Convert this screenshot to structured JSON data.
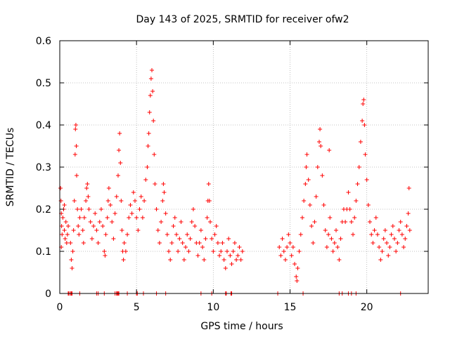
{
  "chart_data": {
    "type": "scatter",
    "title": "Day 143 of 2025, SRMTID for receiver ofw2",
    "xlabel": "GPS time / hours",
    "ylabel": "SRMTID / TECUs",
    "xlim": [
      0,
      24
    ],
    "ylim": [
      0,
      0.6
    ],
    "xticks": [
      0,
      5,
      10,
      15,
      20
    ],
    "yticks": [
      0,
      0.1,
      0.2,
      0.3,
      0.4,
      0.5,
      0.6
    ],
    "xtick_labels": [
      "0",
      "5",
      "10",
      "15",
      "20"
    ],
    "ytick_labels": [
      "0",
      "0.1",
      "0.2",
      "0.3",
      "0.4",
      "0.5",
      "0.6"
    ],
    "grid": true,
    "marker": "+",
    "series": [
      {
        "name": "SRMTID",
        "color": "#ff0000",
        "points": [
          [
            0.05,
            0.25
          ],
          [
            0.08,
            0.22
          ],
          [
            0.1,
            0.19
          ],
          [
            0.12,
            0.16
          ],
          [
            0.15,
            0.14
          ],
          [
            0.2,
            0.18
          ],
          [
            0.25,
            0.2
          ],
          [
            0.3,
            0.15
          ],
          [
            0.35,
            0.13
          ],
          [
            0.4,
            0.17
          ],
          [
            0.45,
            0.12
          ],
          [
            0.5,
            0.14
          ],
          [
            0.1,
            0.11
          ],
          [
            0.3,
            0.21
          ],
          [
            0.55,
            0.16
          ],
          [
            0.7,
            0.12
          ],
          [
            0.75,
            0.08
          ],
          [
            0.8,
            0.06
          ],
          [
            0.85,
            0.1
          ],
          [
            0.9,
            0.15
          ],
          [
            0.95,
            0.22
          ],
          [
            1.0,
            0.33
          ],
          [
            1.02,
            0.39
          ],
          [
            1.05,
            0.4
          ],
          [
            1.08,
            0.35
          ],
          [
            1.1,
            0.28
          ],
          [
            1.15,
            0.2
          ],
          [
            1.2,
            0.16
          ],
          [
            1.25,
            0.14
          ],
          [
            1.3,
            0.18
          ],
          [
            1.4,
            0.2
          ],
          [
            1.5,
            0.15
          ],
          [
            1.55,
            0.12
          ],
          [
            1.6,
            0.18
          ],
          [
            1.7,
            0.22
          ],
          [
            1.75,
            0.25
          ],
          [
            1.8,
            0.26
          ],
          [
            1.85,
            0.23
          ],
          [
            1.9,
            0.2
          ],
          [
            2.0,
            0.17
          ],
          [
            2.1,
            0.13
          ],
          [
            2.2,
            0.16
          ],
          [
            2.3,
            0.19
          ],
          [
            2.4,
            0.15
          ],
          [
            2.5,
            0.12
          ],
          [
            2.6,
            0.17
          ],
          [
            2.7,
            0.2
          ],
          [
            2.8,
            0.16
          ],
          [
            2.9,
            0.1
          ],
          [
            2.95,
            0.09
          ],
          [
            3.0,
            0.14
          ],
          [
            3.1,
            0.18
          ],
          [
            3.15,
            0.22
          ],
          [
            3.2,
            0.25
          ],
          [
            3.3,
            0.21
          ],
          [
            3.4,
            0.17
          ],
          [
            3.5,
            0.13
          ],
          [
            3.6,
            0.19
          ],
          [
            3.7,
            0.23
          ],
          [
            3.8,
            0.28
          ],
          [
            3.85,
            0.34
          ],
          [
            3.9,
            0.38
          ],
          [
            3.95,
            0.31
          ],
          [
            4.0,
            0.22
          ],
          [
            4.05,
            0.15
          ],
          [
            4.1,
            0.1
          ],
          [
            4.15,
            0.08
          ],
          [
            4.2,
            0.12
          ],
          [
            4.3,
            0.1
          ],
          [
            4.4,
            0.14
          ],
          [
            4.5,
            0.18
          ],
          [
            4.6,
            0.21
          ],
          [
            4.7,
            0.19
          ],
          [
            4.8,
            0.24
          ],
          [
            4.9,
            0.22
          ],
          [
            5.0,
            0.18
          ],
          [
            5.1,
            0.15
          ],
          [
            5.2,
            0.2
          ],
          [
            5.3,
            0.23
          ],
          [
            5.4,
            0.18
          ],
          [
            5.5,
            0.22
          ],
          [
            5.6,
            0.27
          ],
          [
            5.7,
            0.3
          ],
          [
            5.75,
            0.35
          ],
          [
            5.8,
            0.38
          ],
          [
            5.85,
            0.43
          ],
          [
            5.9,
            0.47
          ],
          [
            5.95,
            0.51
          ],
          [
            6.0,
            0.53
          ],
          [
            6.05,
            0.48
          ],
          [
            6.1,
            0.41
          ],
          [
            6.15,
            0.33
          ],
          [
            6.2,
            0.26
          ],
          [
            6.3,
            0.2
          ],
          [
            6.4,
            0.15
          ],
          [
            6.5,
            0.12
          ],
          [
            6.6,
            0.17
          ],
          [
            6.7,
            0.22
          ],
          [
            6.75,
            0.26
          ],
          [
            6.8,
            0.24
          ],
          [
            6.9,
            0.19
          ],
          [
            7.0,
            0.14
          ],
          [
            7.1,
            0.1
          ],
          [
            7.2,
            0.08
          ],
          [
            7.3,
            0.12
          ],
          [
            7.4,
            0.16
          ],
          [
            7.5,
            0.18
          ],
          [
            7.6,
            0.14
          ],
          [
            7.7,
            0.1
          ],
          [
            7.8,
            0.13
          ],
          [
            7.9,
            0.17
          ],
          [
            8.0,
            0.12
          ],
          [
            8.1,
            0.08
          ],
          [
            8.2,
            0.11
          ],
          [
            8.3,
            0.14
          ],
          [
            8.4,
            0.1
          ],
          [
            8.5,
            0.13
          ],
          [
            8.6,
            0.17
          ],
          [
            8.7,
            0.2
          ],
          [
            8.8,
            0.16
          ],
          [
            8.9,
            0.12
          ],
          [
            9.0,
            0.09
          ],
          [
            9.1,
            0.12
          ],
          [
            9.2,
            0.15
          ],
          [
            9.3,
            0.11
          ],
          [
            9.4,
            0.08
          ],
          [
            9.5,
            0.13
          ],
          [
            9.6,
            0.18
          ],
          [
            9.65,
            0.22
          ],
          [
            9.7,
            0.26
          ],
          [
            9.75,
            0.22
          ],
          [
            9.8,
            0.17
          ],
          [
            9.9,
            0.13
          ],
          [
            10.0,
            0.1
          ],
          [
            10.1,
            0.14
          ],
          [
            10.2,
            0.16
          ],
          [
            10.3,
            0.12
          ],
          [
            10.4,
            0.09
          ],
          [
            10.5,
            0.1
          ],
          [
            10.6,
            0.12
          ],
          [
            10.7,
            0.08
          ],
          [
            10.8,
            0.06
          ],
          [
            10.9,
            0.1
          ],
          [
            11.0,
            0.13
          ],
          [
            11.1,
            0.09
          ],
          [
            11.2,
            0.07
          ],
          [
            11.3,
            0.1
          ],
          [
            11.4,
            0.12
          ],
          [
            11.5,
            0.08
          ],
          [
            11.6,
            0.09
          ],
          [
            11.7,
            0.11
          ],
          [
            11.8,
            0.08
          ],
          [
            11.9,
            0.1
          ],
          [
            14.3,
            0.11
          ],
          [
            14.4,
            0.09
          ],
          [
            14.5,
            0.13
          ],
          [
            14.6,
            0.1
          ],
          [
            14.7,
            0.08
          ],
          [
            14.8,
            0.11
          ],
          [
            14.9,
            0.14
          ],
          [
            15.0,
            0.12
          ],
          [
            15.1,
            0.09
          ],
          [
            15.2,
            0.11
          ],
          [
            15.3,
            0.07
          ],
          [
            15.4,
            0.04
          ],
          [
            15.45,
            0.03
          ],
          [
            15.5,
            0.06
          ],
          [
            15.6,
            0.1
          ],
          [
            15.7,
            0.14
          ],
          [
            15.8,
            0.18
          ],
          [
            15.9,
            0.22
          ],
          [
            16.0,
            0.26
          ],
          [
            16.05,
            0.3
          ],
          [
            16.1,
            0.33
          ],
          [
            16.2,
            0.27
          ],
          [
            16.3,
            0.21
          ],
          [
            16.4,
            0.16
          ],
          [
            16.5,
            0.12
          ],
          [
            16.6,
            0.17
          ],
          [
            16.7,
            0.23
          ],
          [
            16.8,
            0.3
          ],
          [
            16.9,
            0.36
          ],
          [
            16.95,
            0.39
          ],
          [
            17.0,
            0.35
          ],
          [
            17.1,
            0.28
          ],
          [
            17.2,
            0.21
          ],
          [
            17.3,
            0.15
          ],
          [
            17.4,
            0.11
          ],
          [
            17.5,
            0.14
          ],
          [
            17.55,
            0.34
          ],
          [
            17.6,
            0.18
          ],
          [
            17.7,
            0.13
          ],
          [
            17.8,
            0.1
          ],
          [
            17.9,
            0.12
          ],
          [
            18.0,
            0.15
          ],
          [
            18.1,
            0.11
          ],
          [
            18.2,
            0.08
          ],
          [
            18.3,
            0.13
          ],
          [
            18.4,
            0.17
          ],
          [
            18.5,
            0.2
          ],
          [
            18.6,
            0.17
          ],
          [
            18.7,
            0.2
          ],
          [
            18.8,
            0.24
          ],
          [
            18.9,
            0.2
          ],
          [
            19.0,
            0.17
          ],
          [
            19.1,
            0.14
          ],
          [
            19.2,
            0.18
          ],
          [
            19.3,
            0.22
          ],
          [
            19.4,
            0.26
          ],
          [
            19.5,
            0.3
          ],
          [
            19.6,
            0.36
          ],
          [
            19.7,
            0.41
          ],
          [
            19.75,
            0.45
          ],
          [
            19.8,
            0.46
          ],
          [
            19.85,
            0.4
          ],
          [
            19.9,
            0.33
          ],
          [
            20.0,
            0.27
          ],
          [
            20.1,
            0.21
          ],
          [
            20.2,
            0.17
          ],
          [
            20.3,
            0.14
          ],
          [
            20.4,
            0.12
          ],
          [
            20.5,
            0.15
          ],
          [
            20.6,
            0.18
          ],
          [
            20.7,
            0.14
          ],
          [
            20.8,
            0.11
          ],
          [
            20.9,
            0.08
          ],
          [
            21.0,
            0.1
          ],
          [
            21.1,
            0.13
          ],
          [
            21.2,
            0.15
          ],
          [
            21.3,
            0.12
          ],
          [
            21.4,
            0.09
          ],
          [
            21.5,
            0.11
          ],
          [
            21.6,
            0.14
          ],
          [
            21.7,
            0.16
          ],
          [
            21.8,
            0.13
          ],
          [
            21.9,
            0.1
          ],
          [
            22.0,
            0.12
          ],
          [
            22.1,
            0.15
          ],
          [
            22.2,
            0.17
          ],
          [
            22.3,
            0.14
          ],
          [
            22.4,
            0.11
          ],
          [
            22.5,
            0.13
          ],
          [
            22.6,
            0.16
          ],
          [
            22.7,
            0.19
          ],
          [
            22.75,
            0.25
          ],
          [
            22.8,
            0.15
          ]
        ]
      }
    ],
    "zero_points_x": [
      0.55,
      0.6,
      0.7,
      0.75,
      0.8,
      1.3,
      2.4,
      2.5,
      2.9,
      3.6,
      3.7,
      3.75,
      3.8,
      3.85,
      4.4,
      5.0,
      5.05,
      5.45,
      6.3,
      6.9,
      9.2,
      9.9,
      10.8,
      10.85,
      11.15,
      11.2,
      14.2,
      15.85,
      18.2,
      18.4,
      18.8,
      19.0,
      19.3,
      22.2
    ]
  }
}
